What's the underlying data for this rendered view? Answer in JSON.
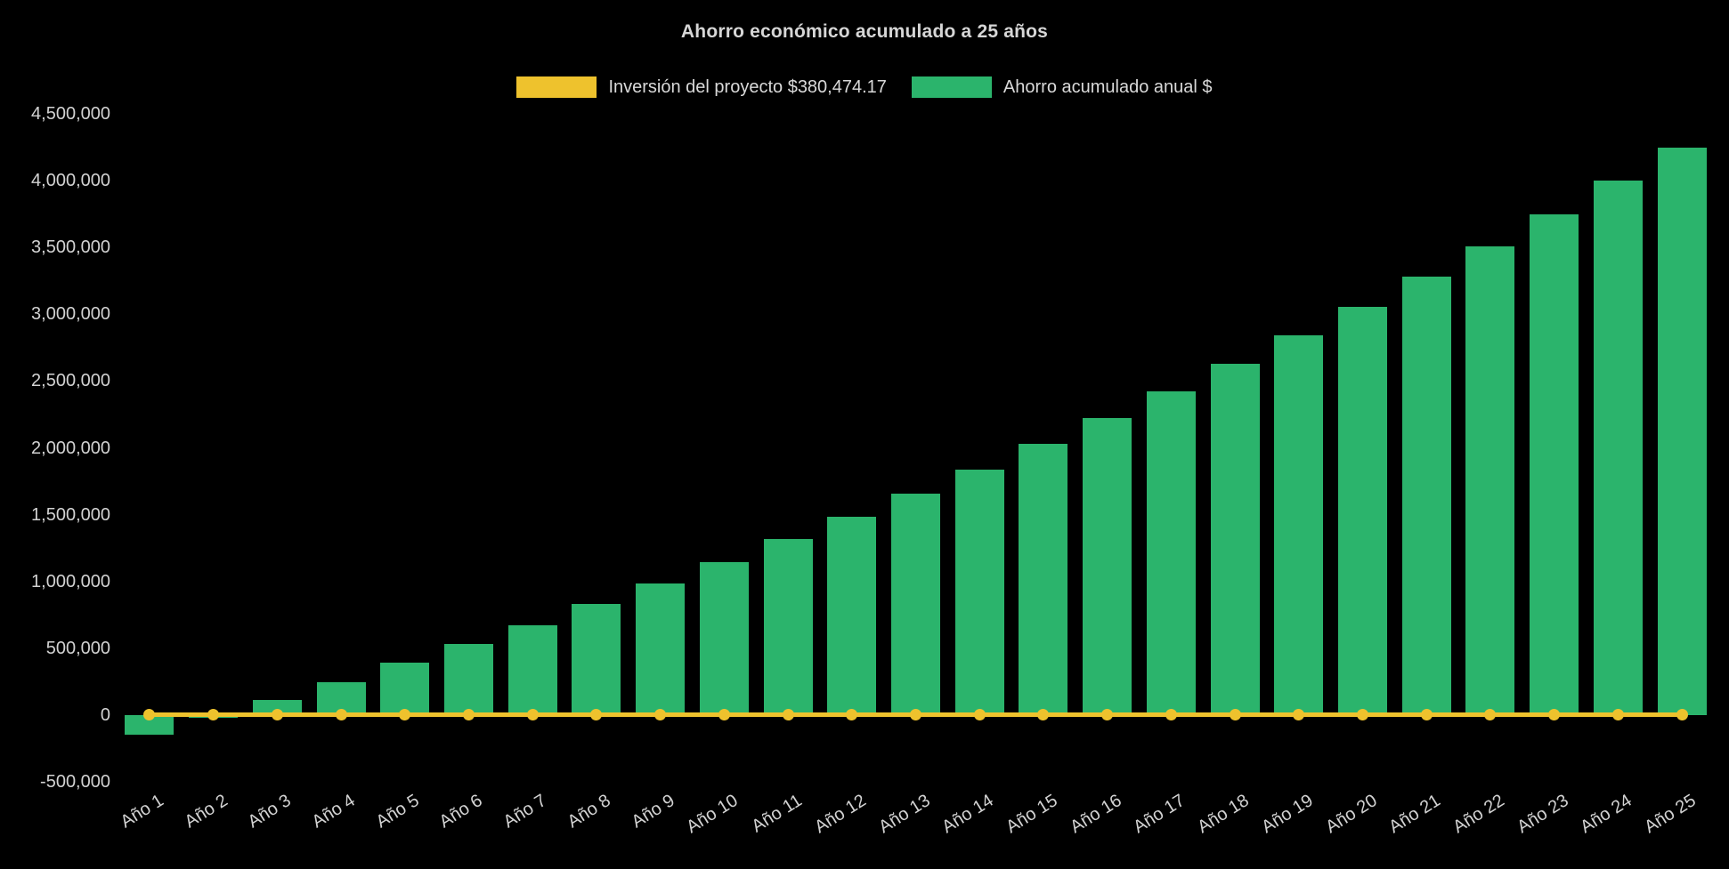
{
  "chart_data": {
    "type": "bar",
    "title": "Ahorro económico acumulado a 25 años",
    "background": "#000000",
    "grid": false,
    "legend_position": "top",
    "ylim": [
      -500000,
      4500000
    ],
    "categories": [
      "Año 1",
      "Año 2",
      "Año 3",
      "Año 4",
      "Año 5",
      "Año 6",
      "Año 7",
      "Año 8",
      "Año 9",
      "Año 10",
      "Año 11",
      "Año 12",
      "Año 13",
      "Año 14",
      "Año 15",
      "Año 16",
      "Año 17",
      "Año 18",
      "Año 19",
      "Año 20",
      "Año 21",
      "Año 22",
      "Año 23",
      "Año 24",
      "Año 25"
    ],
    "series": [
      {
        "name": "Inversión del proyecto $380,474.17",
        "type": "line",
        "color": "#eec22d",
        "values": [
          0,
          0,
          0,
          0,
          0,
          0,
          0,
          0,
          0,
          0,
          0,
          0,
          0,
          0,
          0,
          0,
          0,
          0,
          0,
          0,
          0,
          0,
          0,
          0,
          0
        ]
      },
      {
        "name": "Ahorro acumulado anual $",
        "type": "bar",
        "color": "#2bb46c",
        "values": [
          -150000,
          -20000,
          110000,
          245000,
          390000,
          535000,
          675000,
          830000,
          985000,
          1145000,
          1315000,
          1485000,
          1660000,
          1840000,
          2030000,
          2225000,
          2420000,
          2630000,
          2840000,
          3055000,
          3280000,
          3510000,
          3750000,
          4000000,
          4250000
        ]
      }
    ],
    "y_ticks": [
      {
        "value": 4500000,
        "label": "4,500,000"
      },
      {
        "value": 4000000,
        "label": "4,000,000"
      },
      {
        "value": 3500000,
        "label": "3,500,000"
      },
      {
        "value": 3000000,
        "label": "3,000,000"
      },
      {
        "value": 2500000,
        "label": "2,500,000"
      },
      {
        "value": 2000000,
        "label": "2,000,000"
      },
      {
        "value": 1500000,
        "label": "1,500,000"
      },
      {
        "value": 1000000,
        "label": "1,000,000"
      },
      {
        "value": 500000,
        "label": "500,000"
      },
      {
        "value": 0,
        "label": "0"
      },
      {
        "value": -500000,
        "label": "-500,000"
      }
    ]
  }
}
